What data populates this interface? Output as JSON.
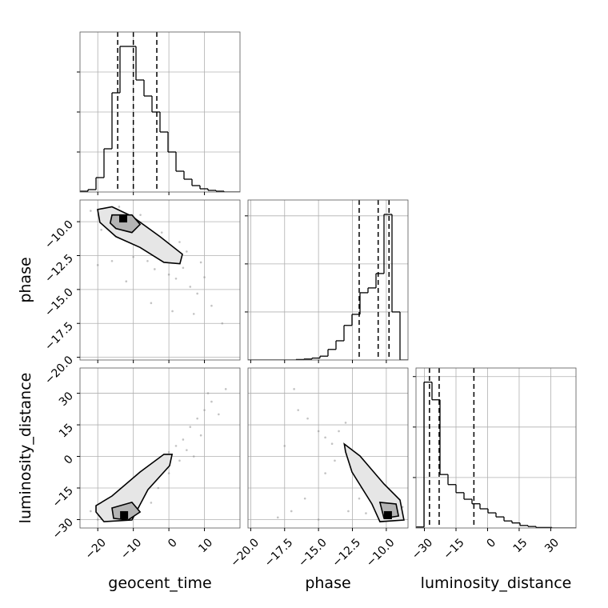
{
  "chart_data": {
    "type": "corner",
    "grid": true,
    "scatter_color": "#888888",
    "contour_color": "#000000",
    "contour_fill": [
      "#e6e6e6",
      "#b4b4b4"
    ],
    "quantile_color": "#000000",
    "hist_color": "#000000",
    "ytick_labels": false,
    "parameters": [
      {
        "name": "geocent_time",
        "lim": [
          -25,
          20
        ],
        "ticks": [
          {
            "value": -20,
            "label": "−20"
          },
          {
            "value": -10,
            "label": "−10"
          },
          0,
          10
        ],
        "quantiles": [
          -14.4,
          -10,
          -3.4
        ],
        "hist": {
          "bins": [
            -25,
            -22.75,
            -20.5,
            -18.25,
            -16,
            -13.75,
            -11.5,
            -9.25,
            -7,
            -4.75,
            -2.5,
            -0.25,
            2,
            4.25,
            6.5,
            8.75,
            11,
            13.25,
            15.5,
            17.75,
            20
          ],
          "counts": [
            1,
            3,
            18,
            54,
            124,
            182,
            182,
            140,
            120,
            100,
            75,
            50,
            26,
            16,
            8,
            4,
            2,
            1,
            0,
            0
          ],
          "ylim": [
            0,
            200
          ],
          "yticks": [
            50,
            100,
            150
          ]
        }
      },
      {
        "name": "phase",
        "lim": [
          -20.2,
          -8.4
        ],
        "ticks": [
          {
            "value": -20,
            "label": "−20.0"
          },
          {
            "value": -17.5,
            "label": "−17.5"
          },
          {
            "value": -15,
            "label": "−15.0"
          },
          {
            "value": -12.5,
            "label": "−12.5"
          },
          {
            "value": -10,
            "label": "−10.0"
          }
        ],
        "quantiles": [
          -12.0,
          -10.6,
          -9.8
        ],
        "hist": {
          "bins": [
            -20.2,
            -19.61,
            -19.02,
            -18.43,
            -17.84,
            -17.25,
            -16.66,
            -16.07,
            -15.48,
            -14.89,
            -14.3,
            -13.71,
            -13.12,
            -12.53,
            -11.94,
            -11.35,
            -10.76,
            -10.17,
            -9.58,
            -8.99,
            -8.4
          ],
          "counts": [
            0,
            0,
            0,
            0,
            0,
            0,
            1,
            2,
            4,
            8,
            22,
            40,
            72,
            95,
            140,
            150,
            180,
            303,
            100,
            0
          ],
          "ylim": [
            0,
            333
          ],
          "yticks": [
            100,
            200,
            300
          ]
        }
      },
      {
        "name": "luminosity_distance",
        "lim": [
          -34,
          42
        ],
        "ticks": [
          {
            "value": -30,
            "label": "−30"
          },
          {
            "value": -15,
            "label": "−15"
          },
          0,
          15,
          30
        ],
        "quantiles": [
          -27.6,
          -23,
          -6.5
        ],
        "hist": {
          "bins": [
            -34,
            -30.2,
            -26.4,
            -22.6,
            -18.8,
            -15,
            -11.2,
            -7.4,
            -3.6,
            0.2,
            4,
            7.8,
            11.6,
            15.4,
            19.2,
            23,
            26.8,
            30.6,
            34.4,
            38.2,
            42
          ],
          "counts": [
            2,
            289,
            254,
            106,
            86,
            70,
            57,
            48,
            38,
            30,
            22,
            14,
            10,
            5,
            3,
            1,
            1,
            0,
            0,
            0
          ],
          "ylim": [
            0,
            317
          ],
          "yticks": [
            100,
            200,
            300
          ]
        }
      }
    ],
    "pairs": [
      {
        "points": {
          "x": [
            -22,
            -18,
            -15,
            -12,
            -10,
            -8,
            -6,
            -4,
            -2,
            0,
            2,
            4,
            6,
            8,
            10,
            12,
            15,
            -16,
            -20,
            -5,
            1,
            5,
            -12,
            -8,
            -19,
            3,
            -2,
            9,
            -14,
            7
          ],
          "y": [
            -9.2,
            -9.8,
            -10.6,
            -11.3,
            -12.6,
            -11.8,
            -12.9,
            -13.5,
            -12.8,
            -13.9,
            -14.2,
            -13.4,
            -14.8,
            -15.3,
            -14.1,
            -16.2,
            -17.5,
            -12.9,
            -13.2,
            -16.0,
            -16.6,
            -12.2,
            -14.4,
            -9.5,
            -10.6,
            -11.5,
            -10.8,
            -13.0,
            -8.9,
            -16.8
          ]
        },
        "contours": [
          {
            "x": [
              -20.05,
              -16,
              -10.4,
              -2.5,
              3.8,
              3.1,
              -1.4,
              -8.1,
              -14.9,
              -19.4
            ],
            "y": [
              -9.1,
              -8.9,
              -9.6,
              -11.1,
              -12.4,
              -13.1,
              -13.0,
              -11.9,
              -11.1,
              -10.05
            ]
          },
          {
            "x": [
              -16,
              -10.4,
              -8.1,
              -10.4,
              -14.9,
              -16.5
            ],
            "y": [
              -9.5,
              -9.5,
              -10.2,
              -10.8,
              -10.5,
              -10.1
            ]
          }
        ],
        "peak": {
          "x": -12.85,
          "y": -9.76
        }
      },
      {
        "points": {
          "x": [
            -22,
            -18,
            -14,
            -10,
            -8,
            -6,
            -4,
            -2,
            0,
            2,
            4,
            6,
            8,
            10,
            12,
            14,
            -12,
            -16,
            -5,
            0,
            3,
            5,
            9,
            11,
            16,
            -20,
            7,
            -3
          ],
          "y": [
            -26,
            -22,
            -18,
            -14,
            -10,
            -12,
            -6,
            -3,
            2,
            5,
            8,
            14,
            18,
            22,
            26,
            20,
            -28,
            -30,
            -22,
            -8,
            -2,
            3,
            10,
            30,
            32,
            -30,
            0,
            -15
          ]
        },
        "contours": [
          {
            "x": [
              -20.5,
              -16,
              -8.1,
              -1.4,
              0.9,
              0.2,
              -5.9,
              -10.4,
              -18.25,
              -20.5
            ],
            "y": [
              -23.4,
              -18.8,
              -7.4,
              1.0,
              1.0,
              -4.4,
              -15.8,
              -30.2,
              -31.0,
              -26.4
            ]
          },
          {
            "x": [
              -16,
              -10.4,
              -8.1,
              -11.5,
              -15.55
            ],
            "y": [
              -24.5,
              -21.8,
              -26.4,
              -30.2,
              -29.4
            ]
          }
        ],
        "peak": {
          "x": -12.6,
          "y": -27.9
        }
      },
      {
        "points": {
          "x": [
            -16.5,
            -15.8,
            -15,
            -14.5,
            -14,
            -13.5,
            -13,
            -12.5,
            -12,
            -11.5,
            -11,
            -10.5,
            -10,
            -9.5,
            -9,
            -8.8,
            -13.8,
            -14.5,
            -16,
            -17,
            -18,
            -12.8,
            -15,
            -11.5,
            -16.8,
            -13,
            -12,
            -17.5
          ],
          "y": [
            22,
            18,
            12,
            9,
            6,
            12,
            3,
            -2,
            -6,
            -10,
            -14,
            -18,
            -22,
            -26,
            -30,
            -24,
            -2,
            -8,
            -20,
            -26,
            -29,
            -26,
            -30,
            -27,
            32,
            16,
            -20,
            5
          ]
        },
        "contours": [
          {
            "x": [
              -13.1,
              -11.94,
              -10.17,
              -8.99,
              -8.7,
              -10.47,
              -11.06,
              -12.53,
              -13.0
            ],
            "y": [
              5.9,
              0.2,
              -13.1,
              -20.7,
              -30.2,
              -31.0,
              -22.6,
              -7.4,
              2.1
            ]
          },
          {
            "x": [
              -10.47,
              -9.28,
              -9.1,
              -10.17
            ],
            "y": [
              -21.8,
              -22.6,
              -28.3,
              -29.4
            ]
          }
        ],
        "peak": {
          "x": -9.88,
          "y": -27.9
        }
      }
    ]
  }
}
